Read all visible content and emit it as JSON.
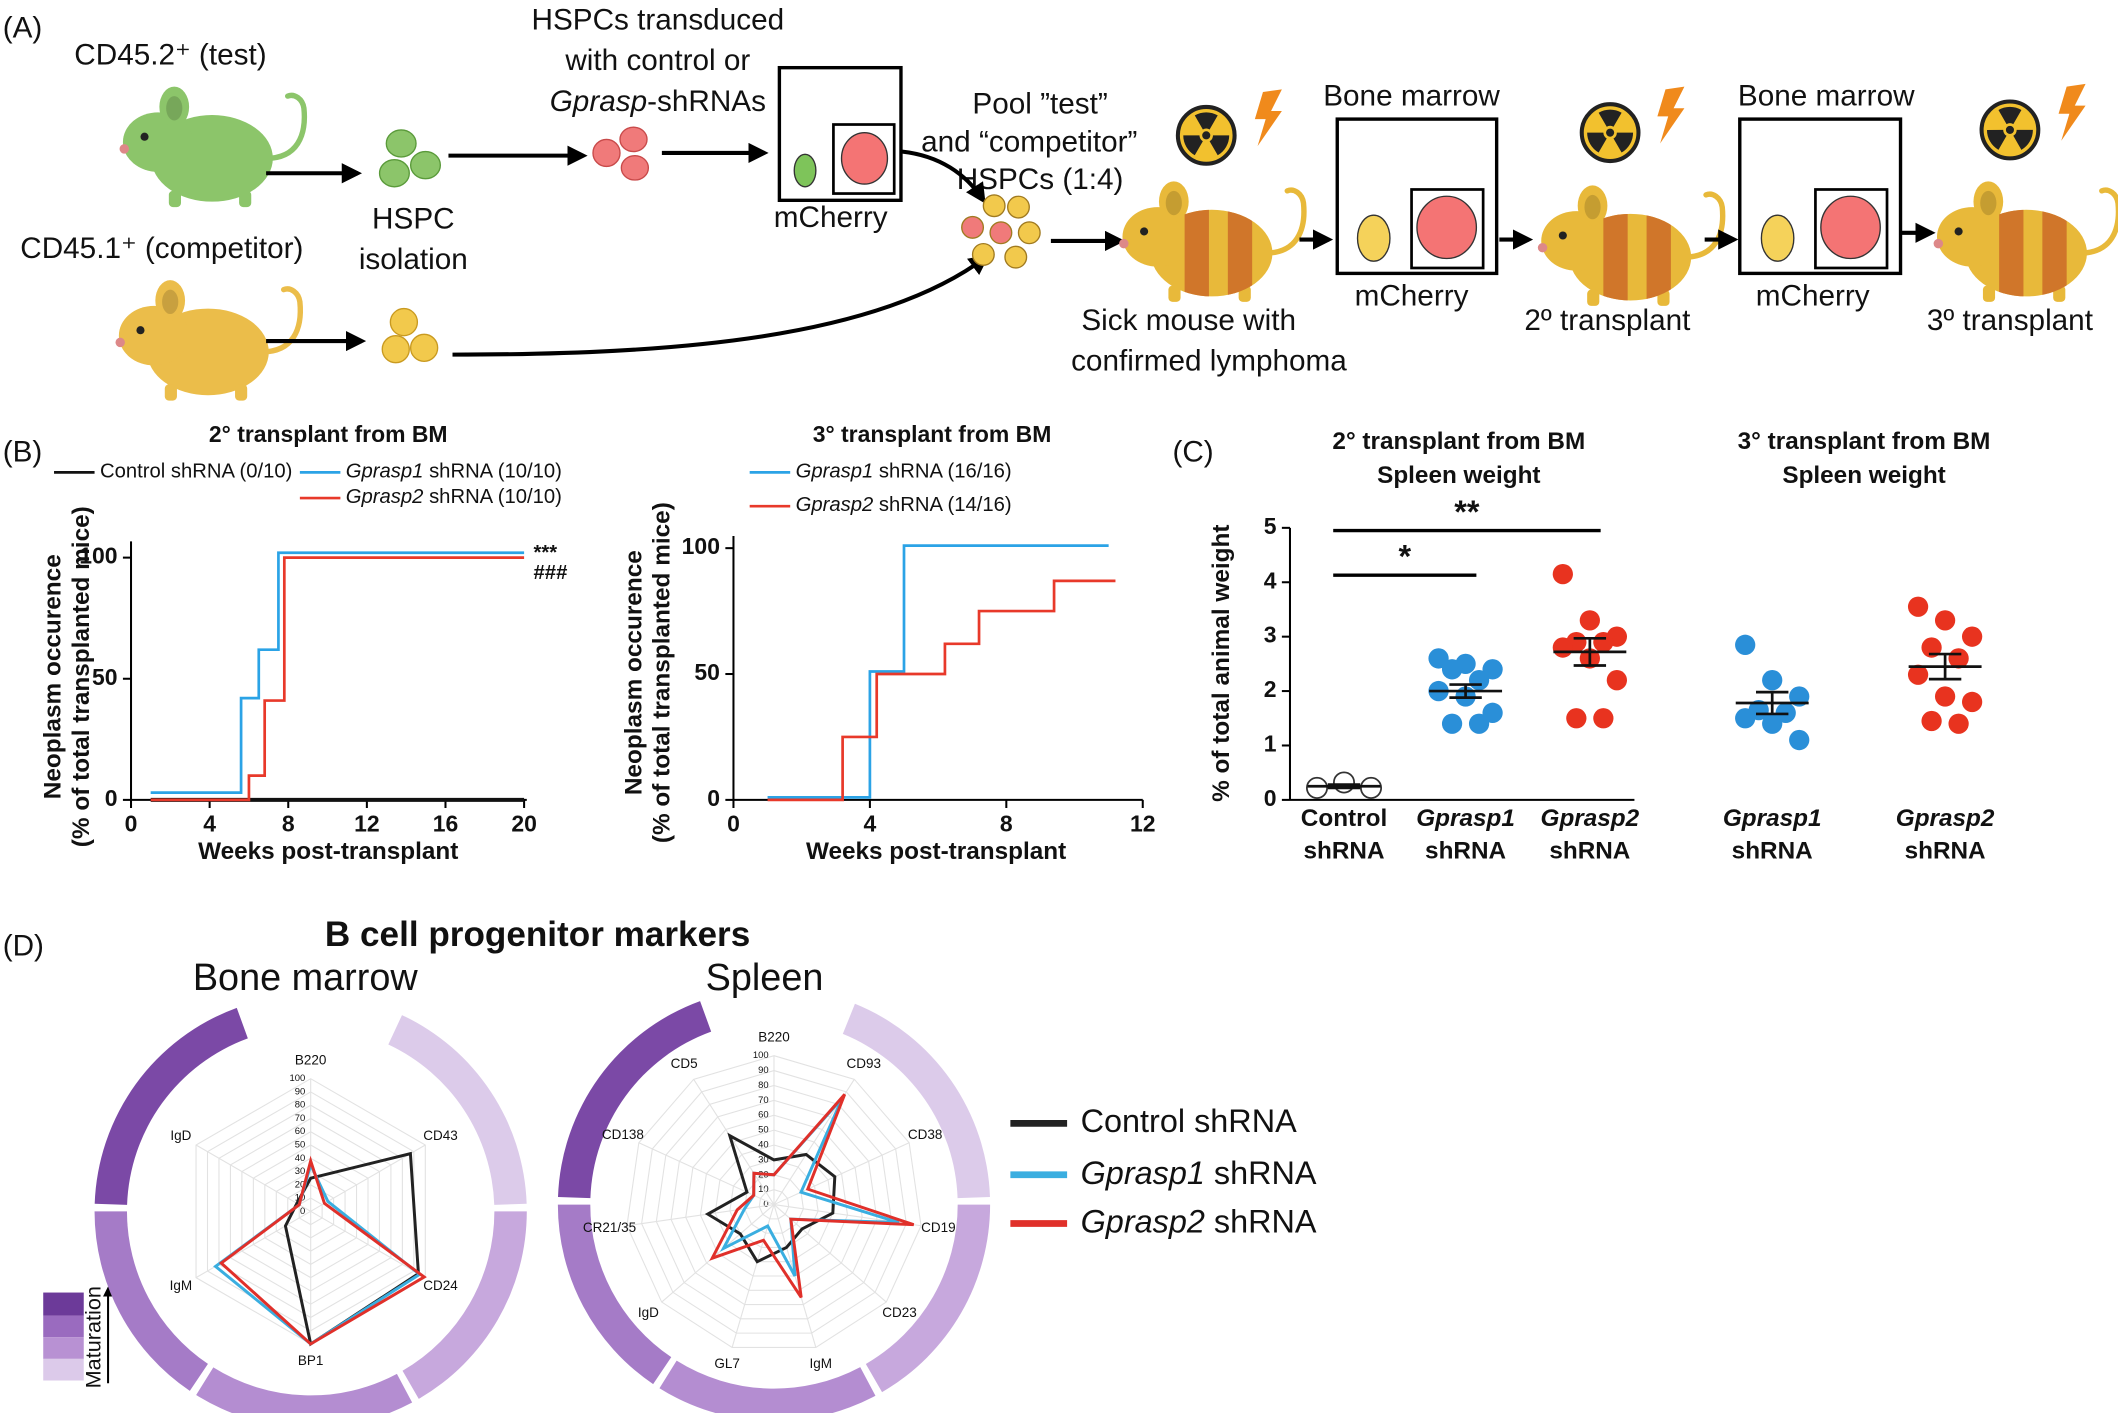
{
  "panel_labels": [
    "(A)",
    "(B)",
    "(C)",
    "(D)"
  ],
  "diagram": {
    "test_mouse": "CD45.2⁺ (test)",
    "competitor_mouse": "CD45.1⁺ (competitor)",
    "isolation": [
      "HSPC",
      "isolation"
    ],
    "transduction": [
      "HSPCs transduced",
      "with control or",
      "Gprasp-shRNAs"
    ],
    "pool": [
      "Pool ”test”",
      "and “competitor”",
      "HSPCs (1:4)"
    ],
    "sick_mouse": [
      "Sick mouse with",
      "confirmed lymphoma"
    ],
    "bone_marrow": [
      "Bone marrow",
      "Bone marrow"
    ],
    "mcherry": [
      "mCherry",
      "mCherry",
      "mCherry"
    ],
    "transplants": [
      "2º transplant",
      "3º transplant"
    ]
  },
  "panel_d": {
    "title": "B cell progenitor markers",
    "maturation": "Maturation"
  },
  "chart_data": [
    {
      "type": "line",
      "step": true,
      "title": "2° transplant from BM",
      "ylabel": [
        "Neoplasm occurence",
        "(% of total transplanted mice)"
      ],
      "xlabel": "Weeks post-transplant",
      "xlim": [
        0,
        20
      ],
      "xticks": [
        0,
        4,
        8,
        12,
        16,
        20
      ],
      "ylim": [
        0,
        100
      ],
      "yticks": [
        0,
        50,
        100
      ],
      "series": [
        {
          "name": "Control shRNA (0/10)",
          "color": "#111111",
          "x": [
            1,
            20
          ],
          "values": [
            0,
            0
          ]
        },
        {
          "name": "Gprasp1 shRNA (10/10)",
          "color": "#2ba3e6",
          "x": [
            1,
            5.6,
            6.5,
            7.5,
            20
          ],
          "values": [
            3,
            42,
            62,
            102,
            102
          ]
        },
        {
          "name": "Gprasp2 shRNA (10/10)",
          "color": "#e8392a",
          "x": [
            1,
            6,
            6.8,
            7.8,
            20
          ],
          "values": [
            0,
            10,
            41,
            100,
            100
          ]
        }
      ],
      "annotations": [
        "***",
        "###"
      ]
    },
    {
      "type": "line",
      "step": true,
      "title": "3° transplant from BM",
      "ylabel": [
        "Neoplasm occurence",
        "(% of total transplanted mice)"
      ],
      "xlabel": "Weeks post-transplant",
      "xlim": [
        0,
        12
      ],
      "xticks": [
        0,
        4,
        8,
        12
      ],
      "ylim": [
        0,
        100
      ],
      "yticks": [
        0,
        50,
        100
      ],
      "series": [
        {
          "name": "Gprasp1 shRNA (16/16)",
          "color": "#2ba3e6",
          "x": [
            1,
            4,
            5,
            11
          ],
          "values": [
            1,
            51,
            101,
            101
          ]
        },
        {
          "name": "Gprasp2 shRNA (14/16)",
          "color": "#e8392a",
          "x": [
            1,
            3.2,
            4.2,
            6.2,
            7.2,
            9.4,
            11.2
          ],
          "values": [
            0,
            25,
            50,
            62,
            75,
            87,
            87
          ]
        }
      ]
    },
    {
      "type": "dot",
      "titles": [
        [
          "2° transplant from BM",
          "Spleen weight"
        ],
        [
          "3° transplant from BM",
          "Spleen weight"
        ]
      ],
      "ylabel": "% of total animal weight",
      "ylim": [
        0,
        5
      ],
      "yticks": [
        0,
        1,
        2,
        3,
        4,
        5
      ],
      "groups": [
        {
          "category": "Control shRNA",
          "color": "#ffffff",
          "edgecolor": "#333333",
          "values": [
            0.22,
            0.32,
            0.22
          ],
          "mean": 0.25,
          "sem": 0.03
        },
        {
          "category": "Gprasp1 shRNA",
          "color": "#2a8fd8",
          "values": [
            2.6,
            2.5,
            2.4,
            2.4,
            2.2,
            2.0,
            1.9,
            1.6,
            1.4,
            1.4
          ],
          "mean": 2.0,
          "sem": 0.12,
          "significance": "*"
        },
        {
          "category": "Gprasp2 shRNA",
          "color": "#e8331f",
          "values": [
            4.15,
            3.3,
            3.0,
            2.9,
            2.9,
            2.8,
            2.6,
            2.2,
            1.5,
            1.5
          ],
          "mean": 2.72,
          "sem": 0.25,
          "significance": "**"
        },
        {
          "category": "Gprasp1 shRNA",
          "color": "#2a8fd8",
          "values": [
            2.85,
            2.2,
            1.9,
            1.65,
            1.6,
            1.5,
            1.4,
            1.1
          ],
          "mean": 1.78,
          "sem": 0.2
        },
        {
          "category": "Gprasp2 shRNA",
          "color": "#e8331f",
          "values": [
            3.55,
            3.3,
            3.0,
            2.8,
            2.6,
            2.3,
            1.9,
            1.8,
            1.45,
            1.4
          ],
          "mean": 2.45,
          "sem": 0.23
        }
      ]
    },
    {
      "type": "radar",
      "title": "Bone marrow",
      "categories": [
        "B220",
        "CD43",
        "CD24",
        "BP1",
        "IgM",
        "IgD"
      ],
      "rlim": [
        0,
        100
      ],
      "rticks": [
        0,
        10,
        20,
        30,
        40,
        50,
        60,
        70,
        80,
        90,
        100
      ],
      "series": [
        {
          "name": "Control shRNA",
          "color": "#222222",
          "values": [
            25,
            87,
            94,
            100,
            22,
            12
          ]
        },
        {
          "name": "Gprasp1 shRNA",
          "color": "#3aaee0",
          "values": [
            35,
            15,
            95,
            100,
            83,
            10
          ]
        },
        {
          "name": "Gprasp2 shRNA",
          "color": "#e0302a",
          "values": [
            38,
            12,
            99,
            100,
            78,
            10
          ]
        }
      ]
    },
    {
      "type": "radar",
      "title": "Spleen",
      "categories": [
        "B220",
        "CD93",
        "CD38",
        "CD19",
        "CD23",
        "IgM",
        "GL7",
        "IgD",
        "CR21/35",
        "CD138",
        "CD5"
      ],
      "rlim": [
        0,
        100
      ],
      "rticks": [
        0,
        10,
        20,
        30,
        40,
        50,
        60,
        70,
        80,
        90,
        100
      ],
      "series": [
        {
          "color": "#222222",
          "values": [
            30,
            40,
            45,
            40,
            25,
            30,
            40,
            30,
            45,
            20,
            55
          ]
        },
        {
          "color": "#3aaee0",
          "values": [
            20,
            85,
            20,
            85,
            15,
            50,
            15,
            45,
            20,
            15,
            25
          ]
        },
        {
          "color": "#e0302a",
          "values": [
            20,
            88,
            25,
            95,
            15,
            65,
            25,
            55,
            25,
            15,
            25
          ]
        }
      ]
    }
  ]
}
